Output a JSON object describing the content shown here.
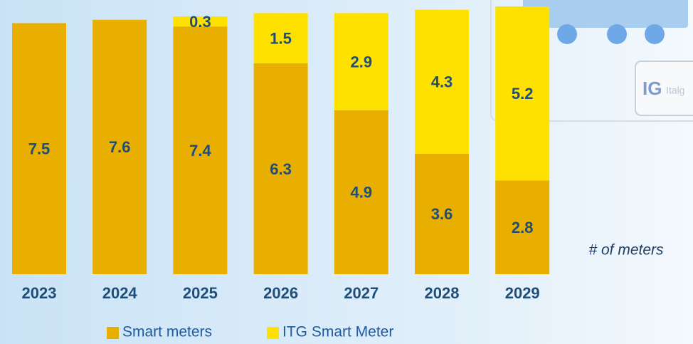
{
  "chart_data": {
    "type": "bar",
    "stacked": true,
    "categories": [
      "2023",
      "2024",
      "2025",
      "2026",
      "2027",
      "2028",
      "2029"
    ],
    "series": [
      {
        "name": "Smart meters",
        "color": "#e8ae00",
        "values": [
          7.5,
          7.6,
          7.4,
          6.3,
          4.9,
          3.6,
          2.8
        ]
      },
      {
        "name": "ITG Smart Meter",
        "color": "#ffe100",
        "values": [
          null,
          null,
          0.3,
          1.5,
          2.9,
          4.3,
          5.2
        ]
      }
    ],
    "annotation": "# of meters",
    "legend": "bottom"
  }
}
